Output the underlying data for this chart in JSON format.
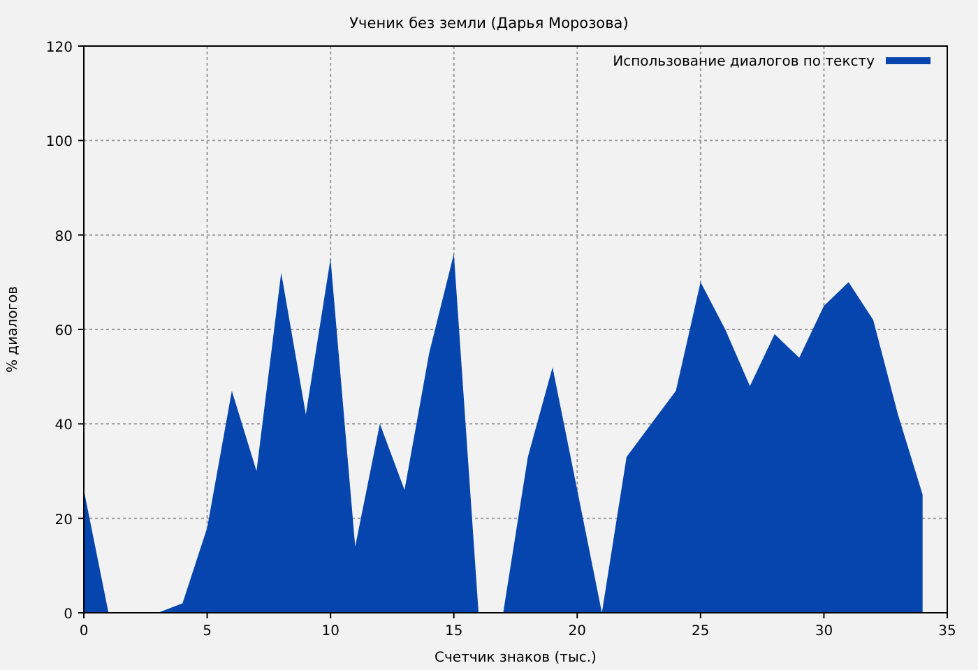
{
  "chart_data": {
    "type": "area",
    "title": "Ученик без земли (Дарья Морозова)",
    "xlabel": "Счетчик знаков (тыс.)",
    "ylabel": "% диалогов",
    "x": [
      0,
      1,
      2,
      3,
      4,
      5,
      6,
      7,
      8,
      9,
      10,
      11,
      12,
      13,
      14,
      15,
      16,
      17,
      18,
      19,
      20,
      21,
      22,
      23,
      24,
      25,
      26,
      27,
      28,
      29,
      30,
      31,
      32,
      33,
      34
    ],
    "series": [
      {
        "name": "Использование диалогов по тексту",
        "color": "#0645ad",
        "values": [
          26,
          0,
          0,
          0,
          2,
          18,
          47,
          30,
          72,
          42,
          75,
          14,
          40,
          26,
          55,
          76,
          0,
          0,
          33,
          52,
          26,
          0,
          33,
          40,
          47,
          70,
          60,
          48,
          59,
          54,
          65,
          70,
          62,
          42,
          25
        ]
      }
    ],
    "xlim": [
      0,
      35
    ],
    "ylim": [
      0,
      120
    ],
    "xticks": [
      0,
      5,
      10,
      15,
      20,
      25,
      30,
      35
    ],
    "yticks": [
      0,
      20,
      40,
      60,
      80,
      100,
      120
    ],
    "grid": true,
    "legend": "top right"
  }
}
